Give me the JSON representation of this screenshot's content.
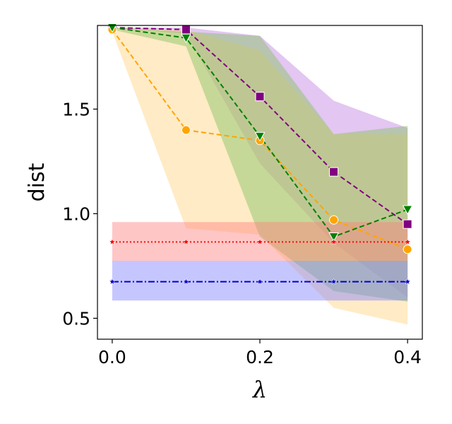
{
  "chart_data": {
    "type": "line",
    "xlabel": "λ",
    "ylabel": "dist",
    "xlim": [
      -0.02,
      0.42
    ],
    "ylim": [
      0.4,
      1.9
    ],
    "xticks": [
      "0.0",
      "0.2",
      "0.4"
    ],
    "yticks": [
      "0.5",
      "1.0",
      "1.5"
    ],
    "grid": false,
    "legend": "none",
    "series": [
      {
        "color": "#800080",
        "linestyle": "dashed",
        "marker": "square",
        "band_color": "#c080e0",
        "x": [
          0.0,
          0.1,
          0.2,
          0.3,
          0.4
        ],
        "y": [
          1.89,
          1.88,
          1.56,
          1.2,
          0.95
        ],
        "upper": [
          1.89,
          1.89,
          1.85,
          1.54,
          1.41
        ],
        "lower": [
          1.89,
          1.86,
          1.24,
          0.86,
          0.6
        ]
      },
      {
        "color": "#ffa500",
        "linestyle": "dashed",
        "marker": "circle",
        "band_color": "#ffd27f",
        "x": [
          0.0,
          0.1,
          0.2,
          0.3,
          0.4
        ],
        "y": [
          1.88,
          1.4,
          1.35,
          0.97,
          0.83
        ],
        "upper": [
          1.89,
          1.88,
          1.78,
          1.38,
          1.38
        ],
        "lower": [
          1.87,
          0.93,
          0.9,
          0.55,
          0.47
        ]
      },
      {
        "color": "#008000",
        "linestyle": "dashed",
        "marker": "triangle-down",
        "band_color": "#80c060",
        "x": [
          0.0,
          0.1,
          0.2,
          0.3,
          0.4
        ],
        "y": [
          1.89,
          1.84,
          1.37,
          0.89,
          1.02
        ],
        "upper": [
          1.89,
          1.87,
          1.85,
          1.38,
          1.42
        ],
        "lower": [
          1.88,
          1.8,
          0.89,
          0.63,
          0.58
        ]
      },
      {
        "color": "#ff0000",
        "linestyle": "dotted",
        "marker": "star",
        "band_color": "#ff8080",
        "x": [
          0.0,
          0.1,
          0.2,
          0.3,
          0.4
        ],
        "y": [
          0.865,
          0.865,
          0.865,
          0.865,
          0.865
        ],
        "upper": [
          0.96,
          0.96,
          0.96,
          0.96,
          0.96
        ],
        "lower": [
          0.775,
          0.775,
          0.775,
          0.775,
          0.775
        ]
      },
      {
        "color": "#0000cc",
        "linestyle": "dashdot",
        "marker": "star",
        "band_color": "#8080ff",
        "x": [
          0.0,
          0.1,
          0.2,
          0.3,
          0.4
        ],
        "y": [
          0.675,
          0.675,
          0.675,
          0.675,
          0.675
        ],
        "upper": [
          0.775,
          0.775,
          0.775,
          0.775,
          0.775
        ],
        "lower": [
          0.585,
          0.585,
          0.585,
          0.585,
          0.585
        ]
      }
    ]
  }
}
